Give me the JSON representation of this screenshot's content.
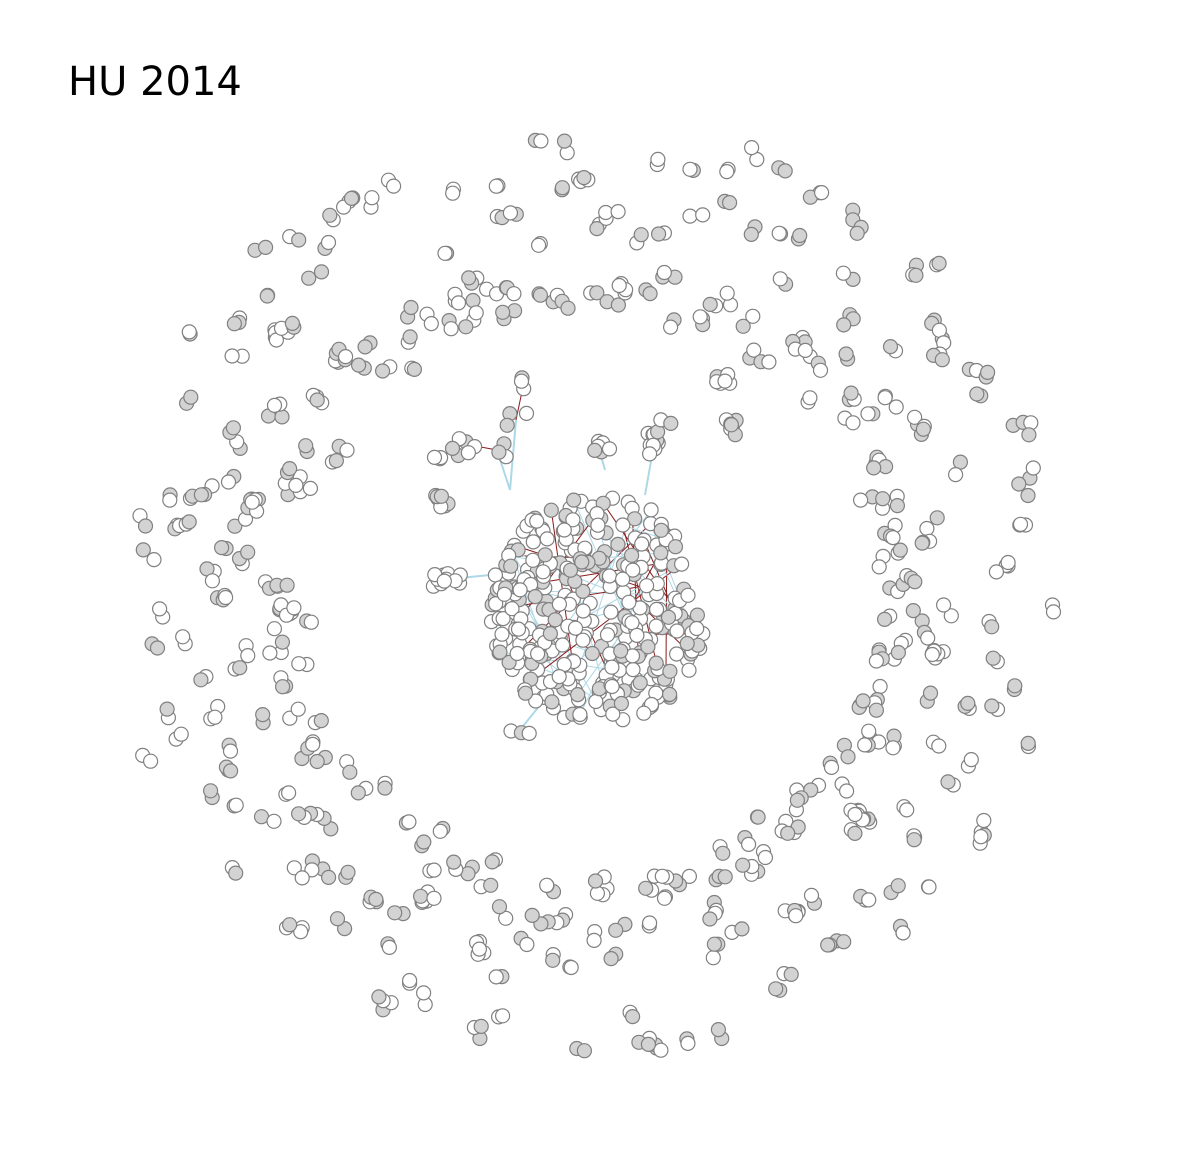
{
  "title": "HU 2014",
  "colors": {
    "background": "#ffffff",
    "node_fill_light": "#ffffff",
    "node_fill_dark": "#d3d3d3",
    "node_stroke": "#808080",
    "edge_blue": "#add8e6",
    "edge_red": "#8b1a1a"
  }
}
